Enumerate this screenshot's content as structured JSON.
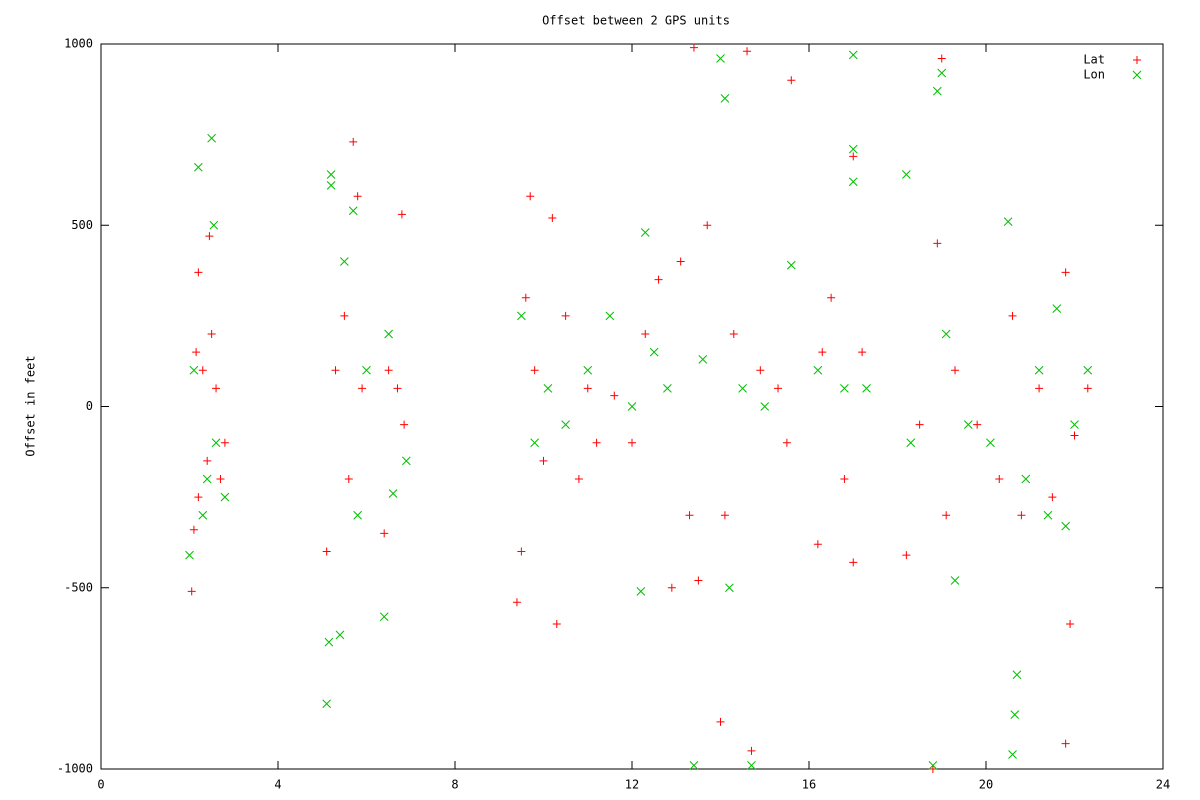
{
  "chart_data": {
    "type": "scatter",
    "title": "Offset between 2 GPS units",
    "y_label": "Offset in feet",
    "xlim": [
      0,
      24
    ],
    "xticks": [
      0,
      4,
      8,
      12,
      16,
      20,
      24
    ],
    "ylim": [
      -1000,
      1000
    ],
    "yticks": [
      -1000,
      -500,
      0,
      500,
      1000
    ],
    "grid": false,
    "legend_position": "top-right",
    "series": [
      {
        "name": "Lat",
        "color": "#ff0000",
        "marker": "+",
        "x": [
          2.05,
          2.1,
          2.2,
          2.3,
          2.4,
          2.5,
          2.6,
          2.7,
          2.2,
          2.45,
          2.8,
          2.15,
          5.1,
          5.3,
          5.5,
          5.7,
          5.8,
          5.6,
          5.9,
          6.4,
          6.5,
          6.8,
          6.85,
          6.7,
          9.4,
          9.5,
          9.6,
          9.7,
          9.8,
          10.0,
          10.2,
          10.3,
          10.5,
          10.8,
          11.0,
          11.2,
          11.6,
          12.0,
          12.3,
          12.6,
          12.9,
          13.1,
          13.3,
          13.4,
          13.5,
          13.7,
          14.0,
          14.1,
          14.3,
          14.6,
          14.7,
          14.9,
          15.3,
          15.5,
          15.6,
          16.2,
          16.3,
          16.5,
          16.8,
          17.0,
          17.0,
          17.2,
          18.2,
          18.5,
          18.8,
          18.9,
          19.0,
          19.1,
          19.3,
          19.8,
          20.3,
          20.6,
          20.8,
          21.2,
          21.5,
          21.8,
          21.9,
          21.8,
          22.0,
          22.3
        ],
        "y": [
          -510,
          -340,
          -250,
          100,
          -150,
          200,
          50,
          -200,
          370,
          470,
          -100,
          150,
          -400,
          100,
          250,
          730,
          580,
          -200,
          50,
          -350,
          100,
          530,
          -50,
          50,
          -540,
          -400,
          300,
          580,
          100,
          -150,
          520,
          -600,
          250,
          -200,
          50,
          -100,
          30,
          -100,
          200,
          350,
          -500,
          400,
          -300,
          990,
          -480,
          500,
          -870,
          -300,
          200,
          980,
          -950,
          100,
          50,
          -100,
          900,
          -380,
          150,
          300,
          -200,
          690,
          -430,
          150,
          -410,
          -50,
          -1000,
          450,
          960,
          -300,
          100,
          -50,
          -200,
          250,
          -300,
          50,
          -250,
          -930,
          -600,
          370,
          -80,
          50
        ]
      },
      {
        "name": "Lon",
        "color": "#00c000",
        "marker": "x",
        "x": [
          2.0,
          2.2,
          2.3,
          2.5,
          2.55,
          2.6,
          2.4,
          2.8,
          2.1,
          5.1,
          5.15,
          5.2,
          5.2,
          5.4,
          5.5,
          5.7,
          5.8,
          6.0,
          6.4,
          6.5,
          6.6,
          6.9,
          9.5,
          9.8,
          10.1,
          10.5,
          11.0,
          11.5,
          12.0,
          12.2,
          12.3,
          12.5,
          12.8,
          13.4,
          13.6,
          14.0,
          14.1,
          14.2,
          14.5,
          14.7,
          15.0,
          15.6,
          16.2,
          16.8,
          17.0,
          17.0,
          17.0,
          17.3,
          18.2,
          18.3,
          18.8,
          18.9,
          19.0,
          19.1,
          19.3,
          19.6,
          20.1,
          20.5,
          20.6,
          20.65,
          20.7,
          20.9,
          21.2,
          21.4,
          21.6,
          21.8,
          22.0,
          22.3
        ],
        "y": [
          -410,
          660,
          -300,
          740,
          500,
          -100,
          -200,
          -250,
          100,
          -820,
          -650,
          640,
          610,
          -630,
          400,
          540,
          -300,
          100,
          -580,
          200,
          -240,
          -150,
          250,
          -100,
          50,
          -50,
          100,
          250,
          0,
          -510,
          480,
          150,
          50,
          -990,
          130,
          960,
          850,
          -500,
          50,
          -990,
          0,
          390,
          100,
          50,
          970,
          710,
          620,
          50,
          640,
          -100,
          -990,
          870,
          920,
          200,
          -480,
          -50,
          -100,
          510,
          -960,
          -850,
          -740,
          -200,
          100,
          -300,
          270,
          -330,
          -50,
          100
        ]
      }
    ]
  }
}
